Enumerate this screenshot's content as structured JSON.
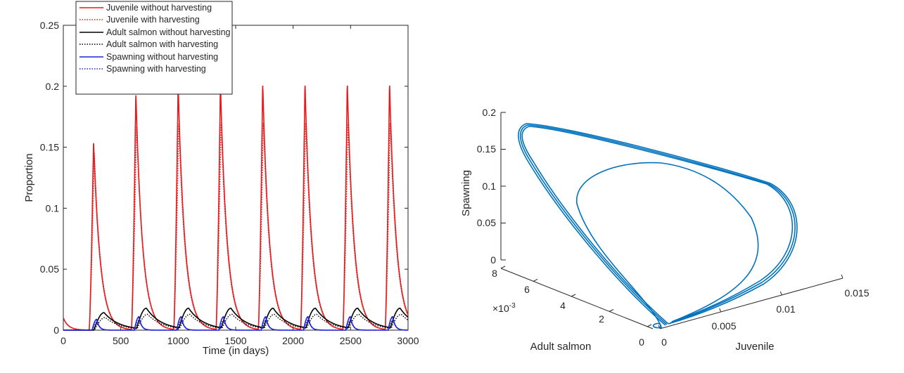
{
  "chart_data": [
    {
      "type": "line",
      "xlabel": "Time (in days)",
      "ylabel": "Proportion",
      "xlim": [
        0,
        3000
      ],
      "ylim": [
        0,
        0.25
      ],
      "xticks": [
        0,
        500,
        1000,
        1500,
        2000,
        2500,
        3000
      ],
      "yticks": [
        0,
        0.05,
        0.1,
        0.15,
        0.2,
        0.25
      ],
      "xtick_labels": [
        "0",
        "500",
        "1000",
        "1500",
        "2000",
        "2500",
        "3000"
      ],
      "ytick_labels": [
        "0",
        "0.05",
        "0.1",
        "0.15",
        "0.2",
        "0.25"
      ],
      "legend_position": "top-left",
      "grid": false,
      "cycle": {
        "period_days": 368,
        "first_onset": 225,
        "juvenile_peak_without": [
          0.156,
          0.196,
          0.203,
          0.204,
          0.204,
          0.204,
          0.204,
          0.204
        ],
        "juvenile_peak_with": [
          0.148,
          0.17,
          0.172,
          0.173,
          0.173,
          0.173,
          0.173,
          0.173
        ],
        "adult_peak_without": 0.018,
        "adult_peak_with": 0.013,
        "spawning_peak_without": 0.011,
        "spawning_peak_with": 0.009,
        "juvenile_initial_value": 0.01
      },
      "series": [
        {
          "name": "Juvenile without harvesting",
          "color": "#e41a1c",
          "style": "solid"
        },
        {
          "name": "Juvenile with harvesting",
          "color": "#e41a1c",
          "style": "dotted"
        },
        {
          "name": "Adult salmon without harvesting",
          "color": "#000000",
          "style": "solid"
        },
        {
          "name": "Adult salmon with harvesting",
          "color": "#000000",
          "style": "dotted"
        },
        {
          "name": "Spawning without harvesting",
          "color": "#1f23d6",
          "style": "solid"
        },
        {
          "name": "Spawning with harvesting",
          "color": "#1f23d6",
          "style": "dotted"
        }
      ]
    },
    {
      "type": "line",
      "projection": "3d",
      "xlabel": "Juvenile",
      "ylabel": "Adult salmon",
      "zlabel": "Spawning",
      "xlim": [
        0,
        0.015
      ],
      "ylim": [
        0,
        0.008
      ],
      "zlim": [
        0,
        0.2
      ],
      "xtick_labels": [
        "0",
        "0.005",
        "0.01",
        "0.015"
      ],
      "ytick_labels": [
        "0",
        "2",
        "4",
        "6",
        "8"
      ],
      "ytick_multiplier": "×10",
      "ytick_multiplier_exp": "-3",
      "ztick_labels": [
        "0",
        "0.05",
        "0.1",
        "0.15",
        "0.2"
      ],
      "line_color": "#0072bd",
      "grid": false
    }
  ]
}
